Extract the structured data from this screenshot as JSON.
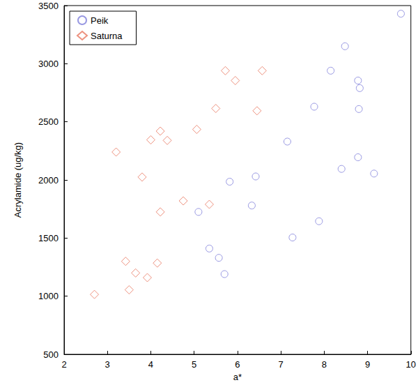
{
  "chart_data": {
    "type": "scatter",
    "x_label": "a*",
    "y_label": "Acrylamide (ug/kg)",
    "xlim": [
      2,
      10
    ],
    "xticks": [
      2,
      3,
      4,
      5,
      6,
      7,
      8,
      9,
      10
    ],
    "ylim": [
      500,
      3500
    ],
    "yticks": [
      500,
      1000,
      1500,
      2000,
      2500,
      3000,
      3500
    ],
    "grid": false,
    "legend": "upper left",
    "series": [
      {
        "name": "Peik",
        "color": "#7f7fdb",
        "marker": "circle",
        "x": [
          9.77,
          8.48,
          8.15,
          8.78,
          8.82,
          7.77,
          8.8,
          7.15,
          8.78,
          8.4,
          9.15,
          6.42,
          5.82,
          6.33,
          5.1,
          7.88,
          7.27,
          5.35,
          5.57,
          5.7
        ],
        "values": [
          3430,
          3150,
          2940,
          2855,
          2790,
          2630,
          2610,
          2330,
          2195,
          2095,
          2055,
          2030,
          1985,
          1780,
          1725,
          1645,
          1505,
          1410,
          1330,
          1190
        ]
      },
      {
        "name": "Saturna",
        "color": "#e8775f",
        "marker": "diamond",
        "x": [
          5.72,
          6.57,
          5.95,
          5.5,
          6.45,
          5.06,
          4.22,
          4.0,
          4.38,
          3.2,
          3.8,
          4.75,
          5.35,
          4.22,
          3.42,
          4.15,
          3.65,
          3.92,
          3.5,
          2.7
        ],
        "values": [
          2940,
          2940,
          2855,
          2615,
          2595,
          2435,
          2420,
          2345,
          2340,
          2240,
          2025,
          1820,
          1790,
          1725,
          1300,
          1285,
          1200,
          1160,
          1055,
          1015
        ]
      }
    ]
  }
}
